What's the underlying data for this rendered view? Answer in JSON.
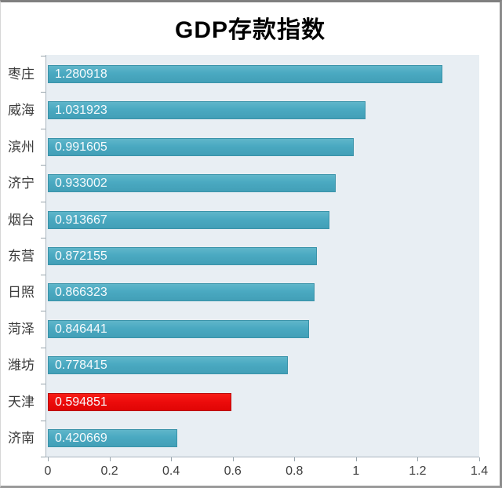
{
  "chart_data": {
    "type": "bar",
    "orientation": "horizontal",
    "title": "GDP存款指数",
    "categories": [
      "枣庄",
      "威海",
      "滨州",
      "济宁",
      "烟台",
      "东营",
      "日照",
      "菏泽",
      "潍坊",
      "天津",
      "济南"
    ],
    "values": [
      1.280918,
      1.031923,
      0.991605,
      0.933002,
      0.913667,
      0.872155,
      0.866323,
      0.846441,
      0.778415,
      0.594851,
      0.420669
    ],
    "value_labels": [
      "1.280918",
      "1.031923",
      "0.991605",
      "0.933002",
      "0.913667",
      "0.872155",
      "0.866323",
      "0.846441",
      "0.778415",
      "0.594851",
      "0.420669"
    ],
    "highlight_index": 9,
    "xlim": [
      0,
      1.4
    ],
    "x_tick_labels": [
      "0",
      "0.2",
      "0.4",
      "0.6",
      "0.8",
      "1",
      "1.2",
      "1.4"
    ],
    "grid": false,
    "legend": "none",
    "colors": {
      "bar": "#46a5bd",
      "highlight_bar": "#ec0b0b",
      "plot_background": "#e8eef3",
      "value_label_text": "#ffffff",
      "axis_text": "#3f3f3f",
      "title_text": "#000000"
    }
  }
}
